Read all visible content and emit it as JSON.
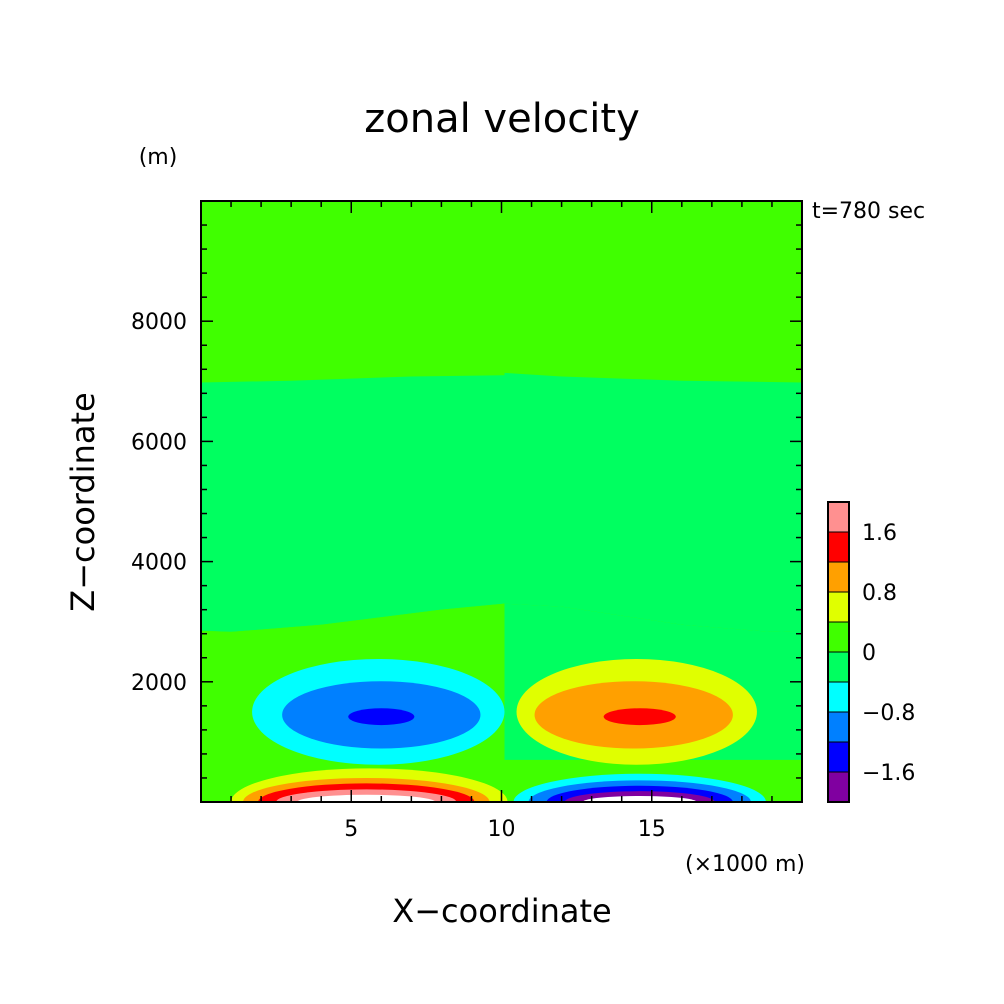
{
  "chart_data": {
    "type": "heatmap",
    "title": "zonal velocity",
    "xlabel": "X−coordinate",
    "ylabel": "Z−coordinate",
    "x_unit": "(×1000 m)",
    "y_unit": "(m)",
    "time_label": "t=780 sec",
    "xlim": [
      0,
      20
    ],
    "ylim": [
      0,
      10000
    ],
    "x_ticks": [
      5,
      10,
      15
    ],
    "x_tick_labels": [
      "5",
      "10",
      "15"
    ],
    "y_ticks": [
      2000,
      4000,
      6000,
      8000
    ],
    "y_tick_labels": [
      "2000",
      "4000",
      "6000",
      "8000"
    ],
    "colorbar": {
      "levels": [
        -2.0,
        -1.6,
        -1.2,
        -0.8,
        -0.4,
        0,
        0.4,
        0.8,
        1.2,
        1.6,
        2.0
      ],
      "colors": [
        "#8000a0",
        "#0000ff",
        "#0080ff",
        "#00ffff",
        "#00ff60",
        "#40ff00",
        "#e0ff00",
        "#ffa000",
        "#ff0000",
        "#ff9090"
      ],
      "tick_values": [
        -1.6,
        -0.8,
        0,
        0.8,
        1.6
      ],
      "tick_labels": [
        "−1.6",
        "−0.8",
        "0",
        "0.8",
        "1.6"
      ]
    },
    "grid": false,
    "legend": "colorbar-right",
    "features": [
      {
        "name": "left-lower-low",
        "center_x": 6,
        "center_z": 1450,
        "min": -1.6,
        "sign": "negative"
      },
      {
        "name": "right-lower-high",
        "center_x": 14.5,
        "center_z": 1450,
        "max": 1.6,
        "sign": "positive"
      },
      {
        "name": "left-surface-high",
        "center_x": 5.5,
        "center_z": 0,
        "max": 2.0,
        "sign": "positive"
      },
      {
        "name": "right-surface-low",
        "center_x": 14.5,
        "center_z": 0,
        "min": -2.0,
        "sign": "negative"
      }
    ]
  }
}
